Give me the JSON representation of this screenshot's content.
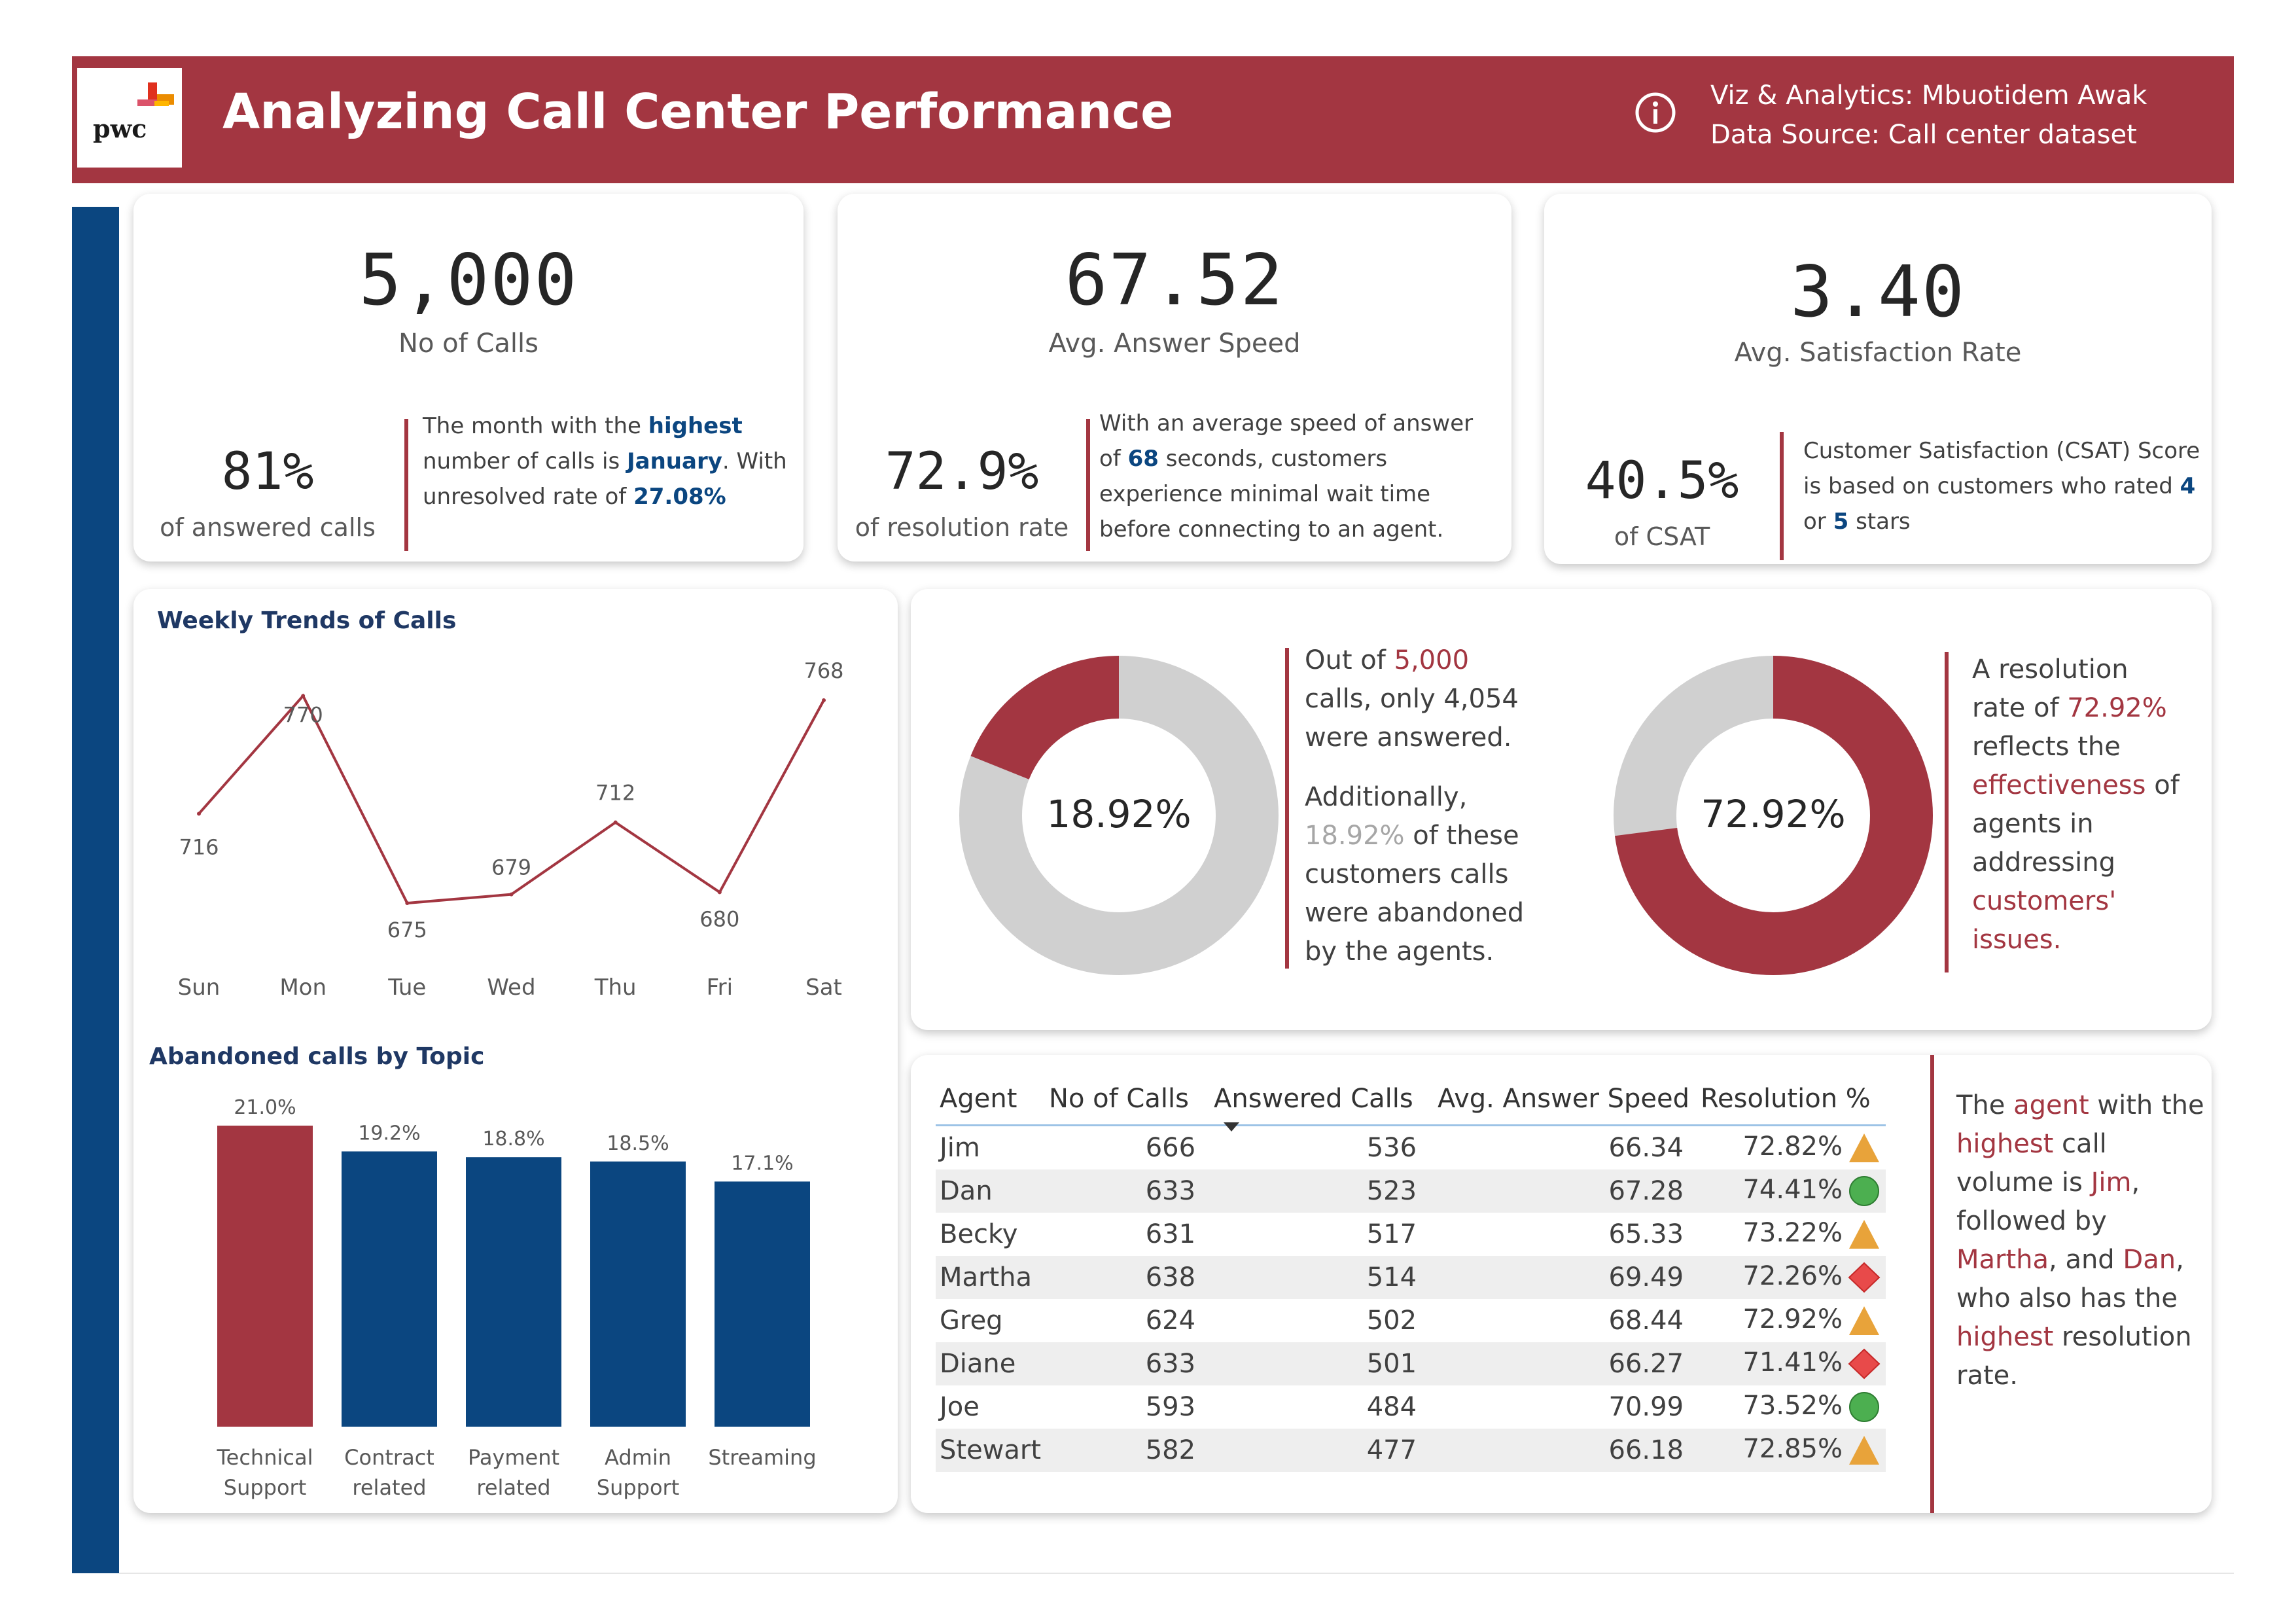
{
  "header": {
    "logo_text": "pwc",
    "title": "Analyzing Call Center Performance",
    "credit_author": "Viz & Analytics: Mbuotidem Awak",
    "credit_source": "Data Source: Call center dataset"
  },
  "kpis": [
    {
      "value": "5,000",
      "label": "No of Calls",
      "sub_value": "81%",
      "sub_label": "of answered calls",
      "note": [
        {
          "text": "The month with the ",
          "bold": false
        },
        {
          "text": "highest",
          "bold": true
        },
        {
          "text": " number of calls is ",
          "bold": false
        },
        {
          "text": "January",
          "bold": true
        },
        {
          "text": ". With unresolved rate of ",
          "bold": false
        },
        {
          "text": "27.08%",
          "bold": true
        }
      ]
    },
    {
      "value": "67.52",
      "label": "Avg. Answer Speed",
      "sub_value": "72.9%",
      "sub_label": "of resolution rate",
      "note": [
        {
          "text": "With an average speed of answer of ",
          "bold": false
        },
        {
          "text": "68",
          "bold": true
        },
        {
          "text": " seconds, customers experience minimal wait time before connecting to an agent.",
          "bold": false
        }
      ]
    },
    {
      "value": "3.40",
      "label": "Avg. Satisfaction Rate",
      "sub_value": "40.5%",
      "sub_label": "of CSAT",
      "note": [
        {
          "text": "Customer Satisfaction (CSAT) Score  is based on customers who rated ",
          "bold": false
        },
        {
          "text": "4",
          "bold": true
        },
        {
          "text": " or ",
          "bold": false
        },
        {
          "text": "5",
          "bold": true
        },
        {
          "text": " stars",
          "bold": false
        }
      ]
    }
  ],
  "weekly_chart": {
    "type": "line",
    "title": "Weekly Trends of Calls",
    "categories": [
      "Sun",
      "Mon",
      "Tue",
      "Wed",
      "Thu",
      "Fri",
      "Sat"
    ],
    "values": [
      716,
      770,
      675,
      679,
      712,
      680,
      768
    ],
    "color": "#a33641"
  },
  "abandoned_chart": {
    "type": "bar",
    "title": "Abandoned calls by Topic",
    "categories": [
      [
        "Technical",
        "Support"
      ],
      [
        "Contract",
        "related"
      ],
      [
        "Payment",
        "related"
      ],
      [
        "Admin",
        "Support"
      ],
      [
        "Streaming"
      ]
    ],
    "values": [
      21.0,
      19.2,
      18.8,
      18.5,
      17.1
    ],
    "labels": [
      "21.0%",
      "19.2%",
      "18.8%",
      "18.5%",
      "17.1%"
    ],
    "colors": [
      "#a33641",
      "#0b4680",
      "#0b4680",
      "#0b4680",
      "#0b4680"
    ]
  },
  "abandon_donut": {
    "type": "pie",
    "center_label": "18.92%",
    "value": 18.92,
    "color": "#a33641",
    "rest_color": "#d0d0d0",
    "note": {
      "p1_a": "Out of ",
      "p1_b": "5,000",
      "p1_c": " calls, only 4,054 were answered.",
      "p2_a": "Additionally, ",
      "p2_b": "18.92%",
      "p2_c": "  of these customers calls were abandoned by the agents."
    }
  },
  "resolution_donut": {
    "type": "pie",
    "center_label": "72.92%",
    "value": 72.92,
    "color": "#a33641",
    "rest_color": "#d0d0d0",
    "note": {
      "a": "A resolution rate of ",
      "b": "72.92%",
      "c": " reflects the ",
      "d": "effectiveness",
      "e": " of agents in addressing ",
      "f": "customers' issues."
    }
  },
  "agents_table": {
    "columns": [
      "Agent",
      "No of Calls",
      "Answered Calls",
      "Avg. Answer Speed",
      "Resolution %"
    ],
    "rows": [
      {
        "agent": "Jim",
        "calls": "666",
        "answered": "536",
        "speed": "66.34",
        "res": "72.82%",
        "indicator": "triangle"
      },
      {
        "agent": "Dan",
        "calls": "633",
        "answered": "523",
        "speed": "67.28",
        "res": "74.41%",
        "indicator": "circle"
      },
      {
        "agent": "Becky",
        "calls": "631",
        "answered": "517",
        "speed": "65.33",
        "res": "73.22%",
        "indicator": "triangle"
      },
      {
        "agent": "Martha",
        "calls": "638",
        "answered": "514",
        "speed": "69.49",
        "res": "72.26%",
        "indicator": "diamond"
      },
      {
        "agent": "Greg",
        "calls": "624",
        "answered": "502",
        "speed": "68.44",
        "res": "72.92%",
        "indicator": "triangle"
      },
      {
        "agent": "Diane",
        "calls": "633",
        "answered": "501",
        "speed": "66.27",
        "res": "71.41%",
        "indicator": "diamond"
      },
      {
        "agent": "Joe",
        "calls": "593",
        "answered": "484",
        "speed": "70.99",
        "res": "73.52%",
        "indicator": "circle"
      },
      {
        "agent": "Stewart",
        "calls": "582",
        "answered": "477",
        "speed": "66.18",
        "res": "72.85%",
        "indicator": "triangle"
      }
    ],
    "indicator_colors": {
      "triangle": "#e8a33a",
      "circle": "#4caf50",
      "diamond": "#e84a4a"
    }
  },
  "agent_note": {
    "a": "The ",
    "b": "agent",
    "c": " with the ",
    "d": "highest",
    "e": " call volume is ",
    "f": "Jim",
    "g": ", followed by ",
    "h": "Martha",
    "i": ", and ",
    "j": "Dan",
    "k": ", who also has the ",
    "l": "highest",
    "m": " resolution rate."
  }
}
